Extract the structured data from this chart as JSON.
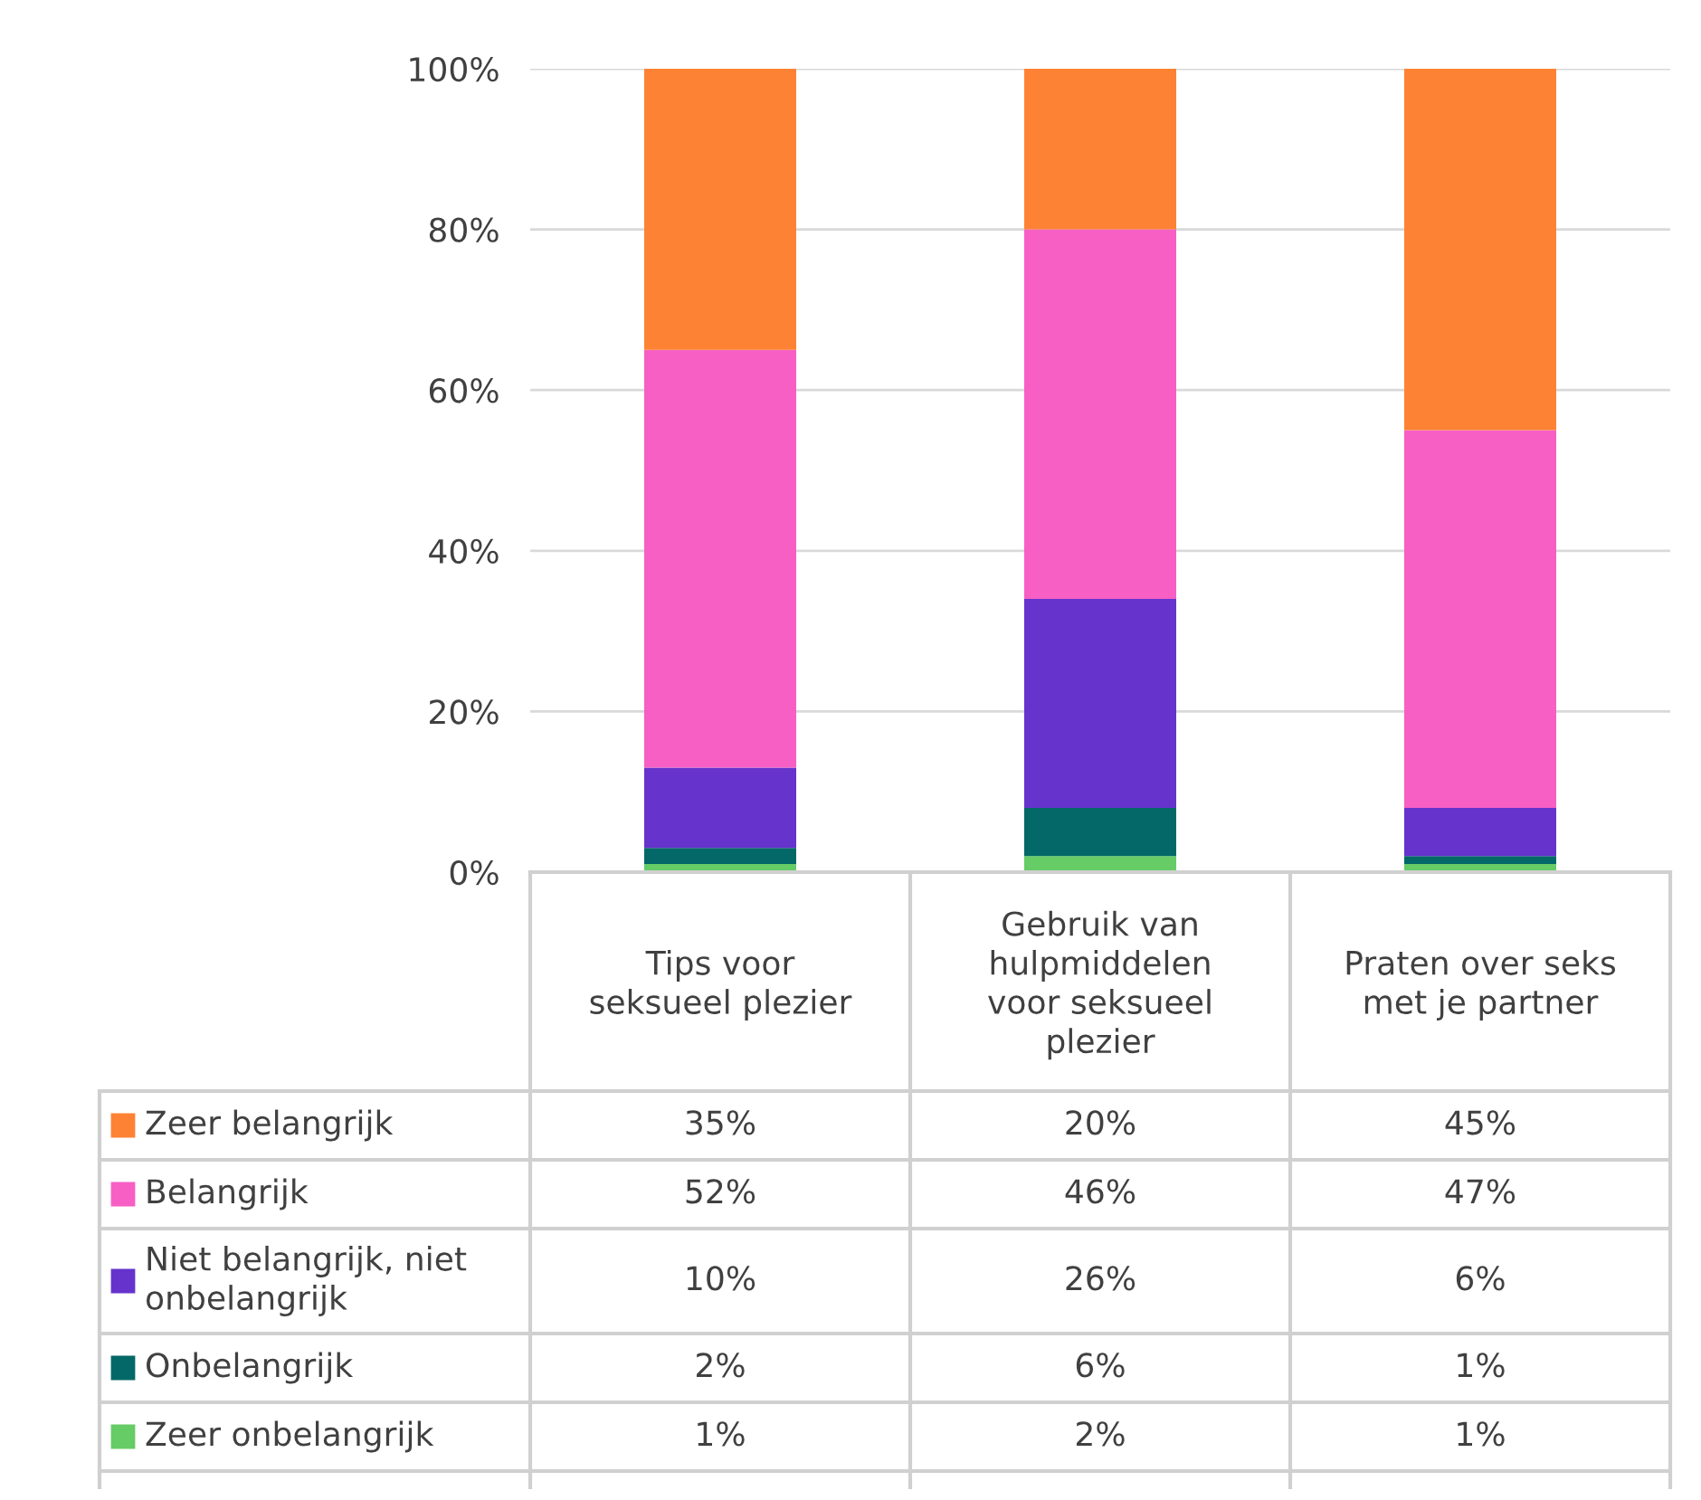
{
  "chart_data": {
    "type": "bar",
    "stacked": true,
    "grid": "y",
    "legend": "bottom left",
    "categories": [
      "Tips voor seksueel plezier",
      "Gebruik van hulpmiddelen voor seksueel plezier",
      "Praten over seks met je partner"
    ],
    "series": [
      {
        "name": "Zeer onbelangrijk",
        "color": "#66cc66",
        "values": [
          1,
          2,
          1
        ],
        "value_labels": [
          "1%",
          "2%",
          "1%"
        ]
      },
      {
        "name": "Onbelangrijk",
        "color": "#036867",
        "values": [
          2,
          6,
          1
        ],
        "value_labels": [
          "2%",
          "6%",
          "1%"
        ]
      },
      {
        "name": "Niet belangrijk, niet onbelangrijk",
        "color": "#6633cc",
        "values": [
          10,
          26,
          6
        ],
        "value_labels": [
          "10%",
          "26%",
          "6%"
        ]
      },
      {
        "name": "Belangrijk",
        "color": "#f75fc4",
        "values": [
          52,
          46,
          47
        ],
        "value_labels": [
          "52%",
          "46%",
          "47%"
        ]
      },
      {
        "name": "Zeer belangrijk",
        "color": "#fe8234",
        "values": [
          35,
          20,
          45
        ],
        "value_labels": [
          "35%",
          "20%",
          "45%"
        ]
      }
    ],
    "ylim": [
      0,
      100
    ],
    "yticks": [
      {
        "value": 0,
        "label": "0%"
      },
      {
        "value": 20,
        "label": "20%"
      },
      {
        "value": 40,
        "label": "40%"
      },
      {
        "value": 60,
        "label": "60%"
      },
      {
        "value": 80,
        "label": "80%"
      },
      {
        "value": 100,
        "label": "100%"
      }
    ]
  }
}
